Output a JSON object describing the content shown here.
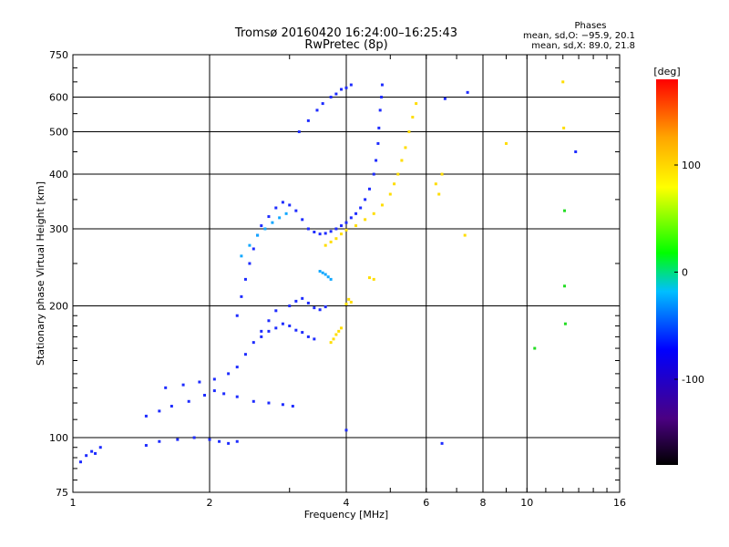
{
  "chart_data": {
    "type": "scatter",
    "title": "Tromsø 20160420 16:24:00–16:25:43",
    "subtitle": "RwPretec (8p)",
    "xlabel": "Frequency [MHz]",
    "ylabel": "Stationary phase Virtual Height [km]",
    "xscale": "log",
    "yscale": "log",
    "xlim": [
      1,
      16
    ],
    "ylim": [
      75,
      750
    ],
    "x_ticks": [
      1,
      2,
      4,
      6,
      8,
      10,
      16
    ],
    "y_ticks": [
      75,
      100,
      200,
      300,
      400,
      500,
      600,
      750
    ],
    "x_grid": [
      2,
      4,
      6,
      8,
      10
    ],
    "y_grid": [
      100,
      200,
      300,
      400,
      500,
      600
    ],
    "phase_stats": {
      "heading": "Phases",
      "line_o": "mean, sd,O: −95.9, 20.1",
      "line_x": "mean, sd,X:  89.0, 21.8"
    },
    "colorbar": {
      "label": "[deg]",
      "ticks": [
        100,
        0,
        -100
      ],
      "range": [
        -180,
        180
      ],
      "colors": [
        "#000000",
        "#4b0082",
        "#0000ff",
        "#00bfff",
        "#00ff00",
        "#ffff00",
        "#ffa500",
        "#ff0000"
      ]
    },
    "traces": [
      {
        "name": "",
        "phase": -100,
        "points": [
          [
            1.04,
            88
          ],
          [
            1.07,
            91
          ],
          [
            1.1,
            93
          ],
          [
            1.12,
            92
          ],
          [
            1.15,
            95
          ]
        ]
      },
      {
        "name": "",
        "phase": -100,
        "points": [
          [
            1.45,
            96
          ],
          [
            1.55,
            98
          ],
          [
            1.7,
            99
          ],
          [
            1.85,
            100
          ],
          [
            2.0,
            99
          ],
          [
            2.1,
            98
          ],
          [
            2.2,
            97
          ],
          [
            2.3,
            98
          ]
        ]
      },
      {
        "name": "",
        "phase": -100,
        "points": [
          [
            1.45,
            112
          ],
          [
            1.55,
            115
          ],
          [
            1.65,
            118
          ],
          [
            1.8,
            121
          ],
          [
            1.95,
            125
          ],
          [
            2.05,
            128
          ],
          [
            2.15,
            126
          ],
          [
            2.3,
            124
          ],
          [
            2.5,
            121
          ],
          [
            2.7,
            120
          ],
          [
            2.9,
            119
          ],
          [
            3.05,
            118
          ]
        ]
      },
      {
        "name": "",
        "phase": -100,
        "points": [
          [
            1.6,
            130
          ],
          [
            1.75,
            132
          ],
          [
            1.9,
            134
          ],
          [
            2.05,
            136
          ],
          [
            2.2,
            140
          ],
          [
            2.3,
            145
          ],
          [
            2.4,
            155
          ],
          [
            2.5,
            165
          ],
          [
            2.6,
            175
          ],
          [
            2.7,
            185
          ],
          [
            2.8,
            195
          ]
        ]
      },
      {
        "name": "",
        "phase": -100,
        "points": [
          [
            2.3,
            190
          ],
          [
            2.35,
            210
          ],
          [
            2.4,
            230
          ],
          [
            2.45,
            250
          ],
          [
            2.5,
            270
          ],
          [
            2.55,
            290
          ],
          [
            2.6,
            305
          ],
          [
            2.7,
            320
          ],
          [
            2.8,
            335
          ],
          [
            2.9,
            345
          ],
          [
            3.0,
            340
          ],
          [
            3.1,
            330
          ],
          [
            3.2,
            315
          ],
          [
            3.3,
            300
          ],
          [
            3.4,
            295
          ],
          [
            3.5,
            292
          ],
          [
            3.6,
            293
          ],
          [
            3.7,
            296
          ],
          [
            3.8,
            300
          ],
          [
            3.9,
            305
          ],
          [
            4.0,
            310
          ],
          [
            4.1,
            318
          ],
          [
            4.2,
            325
          ],
          [
            4.3,
            335
          ],
          [
            4.4,
            350
          ],
          [
            4.5,
            370
          ],
          [
            4.6,
            400
          ],
          [
            4.65,
            430
          ],
          [
            4.7,
            470
          ],
          [
            4.72,
            510
          ],
          [
            4.75,
            560
          ],
          [
            4.78,
            600
          ],
          [
            4.8,
            640
          ]
        ]
      },
      {
        "name": "",
        "phase": -100,
        "points": [
          [
            2.6,
            170
          ],
          [
            2.7,
            175
          ],
          [
            2.8,
            178
          ],
          [
            2.9,
            182
          ],
          [
            3.0,
            180
          ],
          [
            3.1,
            176
          ],
          [
            3.2,
            174
          ],
          [
            3.3,
            170
          ],
          [
            3.4,
            168
          ]
        ]
      },
      {
        "name": "",
        "phase": -100,
        "points": [
          [
            3.0,
            200
          ],
          [
            3.1,
            205
          ],
          [
            3.2,
            208
          ],
          [
            3.3,
            203
          ],
          [
            3.4,
            198
          ],
          [
            3.5,
            196
          ],
          [
            3.6,
            199
          ]
        ]
      },
      {
        "name": "",
        "phase": -100,
        "points": [
          [
            3.15,
            500
          ],
          [
            3.3,
            530
          ],
          [
            3.45,
            560
          ],
          [
            3.55,
            580
          ],
          [
            3.7,
            600
          ],
          [
            3.8,
            610
          ],
          [
            3.9,
            625
          ],
          [
            4.0,
            630
          ],
          [
            4.1,
            640
          ]
        ]
      },
      {
        "name": "",
        "phase": -60,
        "points": [
          [
            2.35,
            260
          ],
          [
            2.45,
            275
          ],
          [
            2.55,
            290
          ],
          [
            2.65,
            300
          ],
          [
            2.75,
            310
          ],
          [
            2.85,
            318
          ],
          [
            2.95,
            325
          ],
          [
            3.5,
            240
          ],
          [
            3.55,
            238
          ],
          [
            3.6,
            236
          ],
          [
            3.65,
            233
          ],
          [
            3.7,
            230
          ]
        ]
      },
      {
        "name": "",
        "phase": 100,
        "points": [
          [
            3.6,
            275
          ],
          [
            3.7,
            280
          ],
          [
            3.8,
            285
          ],
          [
            3.9,
            292
          ],
          [
            4.0,
            298
          ],
          [
            4.2,
            305
          ],
          [
            4.4,
            315
          ],
          [
            4.6,
            325
          ],
          [
            4.8,
            340
          ],
          [
            5.0,
            360
          ],
          [
            5.1,
            380
          ],
          [
            5.2,
            400
          ],
          [
            5.3,
            430
          ],
          [
            5.4,
            460
          ],
          [
            5.5,
            500
          ],
          [
            5.6,
            540
          ],
          [
            5.7,
            580
          ]
        ]
      },
      {
        "name": "",
        "phase": 110,
        "points": [
          [
            3.7,
            165
          ],
          [
            3.75,
            168
          ],
          [
            3.8,
            172
          ],
          [
            3.85,
            175
          ],
          [
            3.9,
            178
          ],
          [
            4.0,
            202
          ],
          [
            4.05,
            207
          ],
          [
            4.1,
            204
          ],
          [
            4.5,
            232
          ],
          [
            4.6,
            230
          ]
        ]
      },
      {
        "name": "",
        "phase": 100,
        "points": [
          [
            6.4,
            360
          ],
          [
            6.3,
            380
          ],
          [
            6.5,
            400
          ],
          [
            7.3,
            290
          ],
          [
            9.0,
            470
          ],
          [
            12.0,
            650
          ],
          [
            12.05,
            510
          ]
        ]
      },
      {
        "name": "",
        "phase": 0,
        "points": [
          [
            10.4,
            160
          ],
          [
            12.1,
            330
          ],
          [
            12.1,
            222
          ],
          [
            12.15,
            182
          ]
        ]
      },
      {
        "name": "",
        "phase": -100,
        "points": [
          [
            4.0,
            104
          ],
          [
            6.5,
            97
          ],
          [
            6.6,
            595
          ],
          [
            7.4,
            615
          ],
          [
            12.8,
            450
          ]
        ]
      }
    ]
  }
}
